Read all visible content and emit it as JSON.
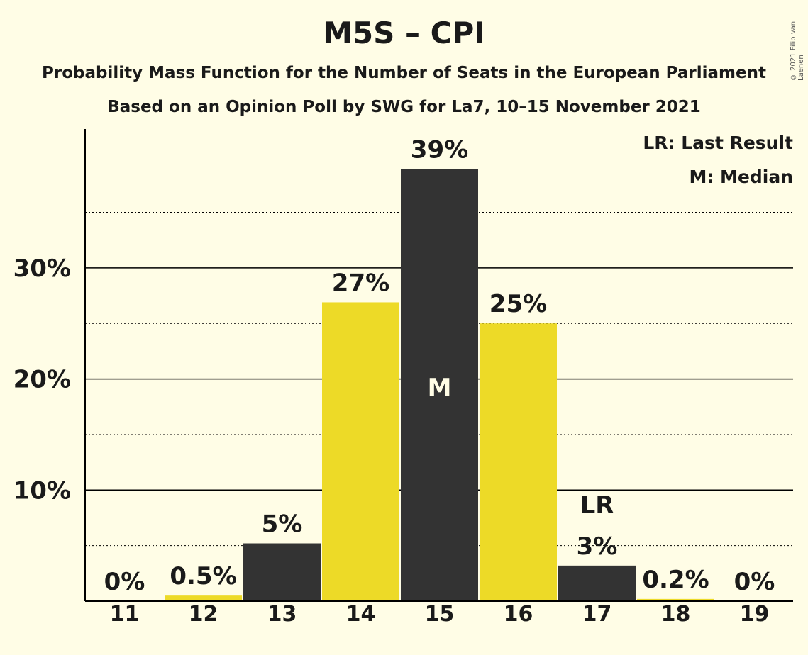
{
  "chart_data": {
    "type": "bar",
    "title": "M5S – CPI",
    "subtitle": "Probability Mass Function for the Number of Seats in the European Parliament",
    "subtitle2": "Based on an Opinion Poll by SWG for La7, 10–15 November 2021",
    "categories": [
      "11",
      "12",
      "13",
      "14",
      "15",
      "16",
      "17",
      "18",
      "19"
    ],
    "values": [
      0,
      0.5,
      5.2,
      26.9,
      38.9,
      25.0,
      3.2,
      0.2,
      0
    ],
    "labels": [
      "0%",
      "0.5%",
      "5%",
      "27%",
      "39%",
      "25%",
      "3%",
      "0.2%",
      "0%"
    ],
    "bar_colors": [
      "#333333",
      "#EDDA27",
      "#333333",
      "#EDDA27",
      "#333333",
      "#EDDA27",
      "#333333",
      "#EDDA27",
      "#333333"
    ],
    "ylim": [
      0,
      42.5
    ],
    "yticks": [
      10,
      20,
      30
    ],
    "ytick_labels": [
      "10%",
      "20%",
      "30%"
    ],
    "minor_gridlines": [
      5,
      15,
      25,
      35
    ],
    "median_index": 4,
    "median_mark": "M",
    "last_result_index": 6,
    "last_result_mark": "LR",
    "legend": [
      "LR: Last Result",
      "M: Median"
    ],
    "legend_position": "top-right",
    "background": "#FFFDE6"
  },
  "copyright": "© 2021 Filip van Laenen"
}
